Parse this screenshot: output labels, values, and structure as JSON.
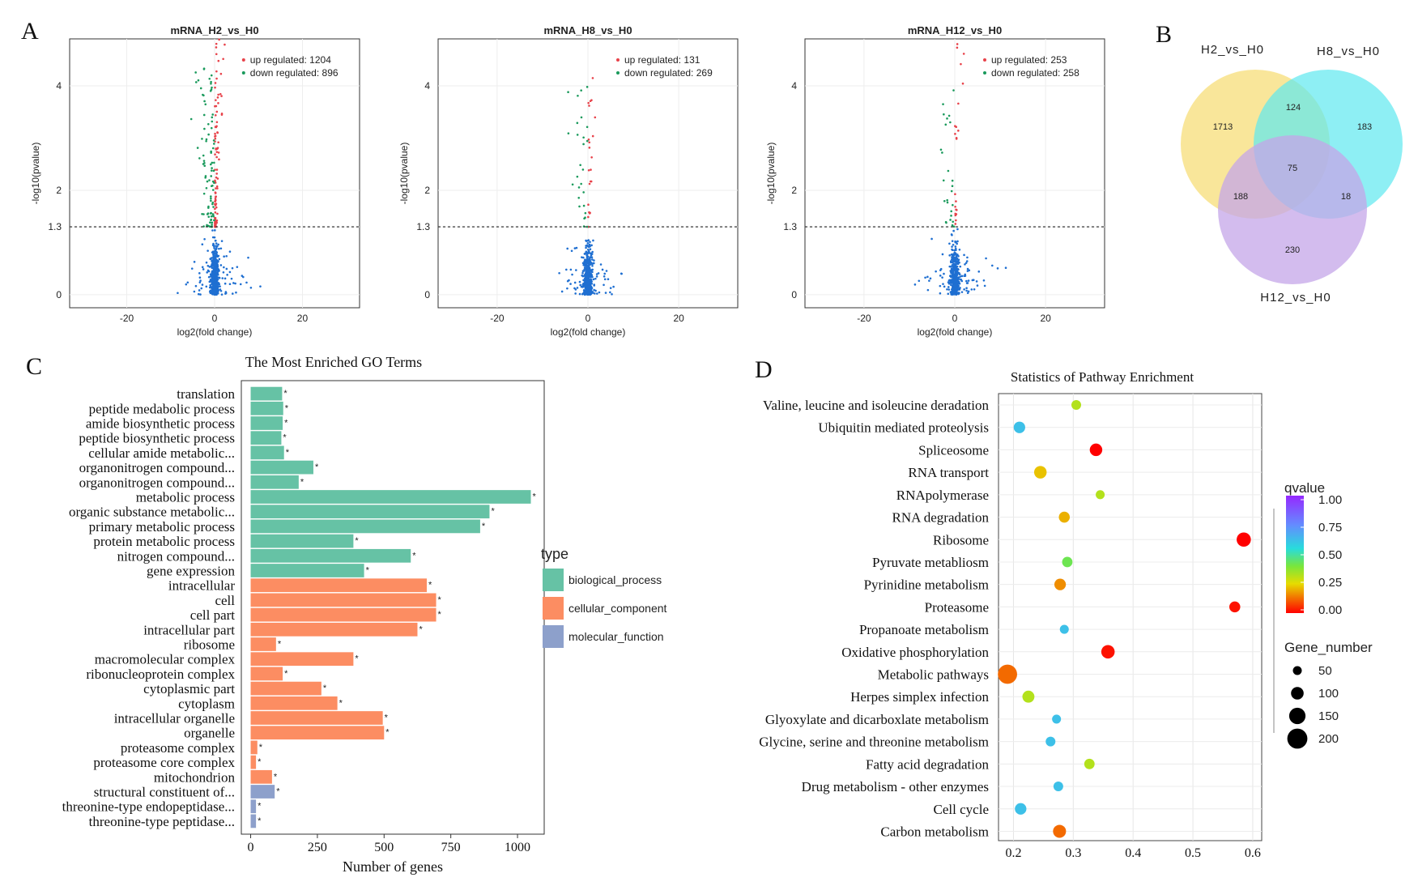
{
  "panel_labels": {
    "a": "A",
    "b": "B",
    "c": "C",
    "d": "D"
  },
  "colors": {
    "up": "#e8424a",
    "down": "#1a9a5c",
    "ns": "#1f6fd1",
    "bio": "#66c2a5",
    "cell": "#fc8d62",
    "mol": "#8da0cb",
    "venn_h2": "#f7dc6f",
    "venn_h8": "#5ee8f0",
    "venn_h12": "#c4a6e8"
  },
  "chart_data": [
    {
      "type": "scatter",
      "name": "volcano_H2",
      "title": "mRNA_H2_vs_H0",
      "xlabel": "log2(fold change)",
      "ylabel": "-log10(pvalue)",
      "xlim": [
        -33,
        33
      ],
      "ylim": [
        -0.25,
        4.9
      ],
      "xticks": [
        -20,
        0,
        20
      ],
      "yticks": [
        0,
        1.3,
        2,
        4
      ],
      "threshold": 1.3,
      "legend": [
        "up regulated: 1204",
        "down regulated: 896"
      ],
      "up_count": 1204,
      "down_count": 896,
      "max_y": 4.9
    },
    {
      "type": "scatter",
      "name": "volcano_H8",
      "title": "mRNA_H8_vs_H0",
      "xlabel": "log2(fold change)",
      "ylabel": "-log10(pvalue)",
      "xlim": [
        -33,
        33
      ],
      "ylim": [
        -0.25,
        4.9
      ],
      "xticks": [
        -20,
        0,
        20
      ],
      "yticks": [
        0,
        1.3,
        2,
        4
      ],
      "threshold": 1.3,
      "legend": [
        "up regulated: 131",
        "down regulated: 269"
      ],
      "up_count": 131,
      "down_count": 269,
      "max_y": 4.7
    },
    {
      "type": "scatter",
      "name": "volcano_H12",
      "title": "mRNA_H12_vs_H0",
      "xlabel": "log2(fold change)",
      "ylabel": "-log10(pvalue)",
      "xlim": [
        -33,
        33
      ],
      "ylim": [
        -0.25,
        4.9
      ],
      "xticks": [
        -20,
        0,
        20
      ],
      "yticks": [
        0,
        1.3,
        2,
        4
      ],
      "threshold": 1.3,
      "legend": [
        "up regulated: 253",
        "down regulated: 258"
      ],
      "up_count": 253,
      "down_count": 258,
      "max_y": 4.8
    },
    {
      "type": "venn",
      "name": "venn",
      "sets": [
        "H2_vs_H0",
        "H8_vs_H0",
        "H12_vs_H0"
      ],
      "regions": {
        "H2_only": 1713,
        "H8_only": 183,
        "H12_only": 230,
        "H2_H8": 124,
        "H2_H12": 188,
        "H8_H12": 18,
        "all": 75
      }
    },
    {
      "type": "bar",
      "name": "go_terms",
      "title": "The Most Enriched GO Terms",
      "xlabel": "Number of genes",
      "xlim": [
        -35,
        1100
      ],
      "xticks": [
        0,
        250,
        500,
        750,
        1000
      ],
      "legend_title": "type",
      "legend": [
        "biological_process",
        "cellular_component",
        "molecular_function"
      ],
      "categories": [
        "translation",
        "peptide medabolic process",
        "amide biosynthetic process",
        "peptide biosynthetic process",
        "cellular amide metabolic...",
        "organonitrogen compound...",
        "organonitrogen compound...",
        "metabolic process",
        "organic substance metabolic...",
        "primary metabolic process",
        "protein metabolic process",
        "nitrogen compound...",
        "gene expression",
        "intracellular",
        "cell",
        "cell part",
        "intracellular part",
        "ribosome",
        "macromolecular complex",
        "ribonucleoprotein complex",
        "cytoplasmic part",
        "cytoplasm",
        "intracellular organelle",
        "organelle",
        "proteasome complex",
        "proteasome core complex",
        "mitochondrion",
        "structural constituent of...",
        "threonine-type endopeptidase...",
        "threonine-type peptidase..."
      ],
      "values": [
        118,
        122,
        120,
        115,
        125,
        235,
        180,
        1050,
        895,
        860,
        385,
        600,
        425,
        660,
        695,
        695,
        625,
        95,
        385,
        120,
        265,
        325,
        495,
        500,
        25,
        20,
        80,
        90,
        20,
        20
      ],
      "types": [
        "bio",
        "bio",
        "bio",
        "bio",
        "bio",
        "bio",
        "bio",
        "bio",
        "bio",
        "bio",
        "bio",
        "bio",
        "bio",
        "cell",
        "cell",
        "cell",
        "cell",
        "cell",
        "cell",
        "cell",
        "cell",
        "cell",
        "cell",
        "cell",
        "cell",
        "cell",
        "cell",
        "mol",
        "mol",
        "mol"
      ],
      "marker": "*"
    },
    {
      "type": "scatter",
      "name": "pathway",
      "title": "Statistics of Pathway Enrichment",
      "xlim": [
        0.175,
        0.615
      ],
      "xticks": [
        0.2,
        0.3,
        0.4,
        0.5,
        0.6
      ],
      "tick_labels": [
        "0.2",
        "0.3",
        "0.4",
        "0.5",
        "0.6"
      ],
      "legend_color_title": "qvalue",
      "legend_color_ticks": [
        "1.00",
        "0.75",
        "0.50",
        "0.25",
        "0.00"
      ],
      "legend_size_title": "Gene_number",
      "legend_size_ticks": [
        "50",
        "100",
        "150",
        "200"
      ],
      "categories": [
        "Valine, leucine and isoleucine deradation",
        "Ubiquitin mediated proteolysis",
        "Spliceosome",
        "RNA transport",
        "RNApolymerase",
        "RNA degradation",
        "Ribosome",
        "Pyruvate metabliosm",
        "Pyrinidine metabolism",
        "Proteasome",
        "Propanoate metabolism",
        "Oxidative phosphorylation",
        "Metabolic pathways",
        "Herpes simplex infection",
        "Glyoxylate and dicarboxlate metabolism",
        "Glycine, serine and threonine metabolism",
        "Fatty acid degradation",
        "Drug metabolism - other enzymes",
        "Cell cycle",
        "Carbon metabolism"
      ],
      "x": [
        0.305,
        0.21,
        0.338,
        0.245,
        0.345,
        0.285,
        0.585,
        0.29,
        0.278,
        0.57,
        0.285,
        0.358,
        0.19,
        0.225,
        0.272,
        0.262,
        0.327,
        0.275,
        0.212,
        0.277
      ],
      "qvalue": [
        0.32,
        0.62,
        0.0,
        0.22,
        0.32,
        0.2,
        0.0,
        0.42,
        0.16,
        0.02,
        0.62,
        0.02,
        0.12,
        0.32,
        0.62,
        0.62,
        0.32,
        0.62,
        0.62,
        0.12
      ],
      "gene_number": [
        20,
        35,
        45,
        45,
        15,
        30,
        65,
        25,
        35,
        30,
        15,
        55,
        145,
        40,
        15,
        20,
        25,
        20,
        35,
        50
      ]
    }
  ]
}
